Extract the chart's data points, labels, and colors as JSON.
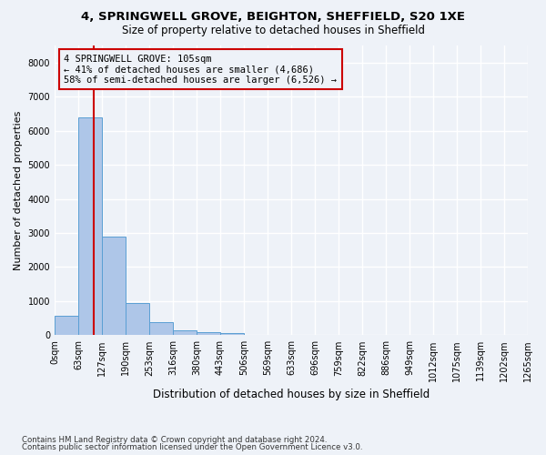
{
  "title1": "4, SPRINGWELL GROVE, BEIGHTON, SHEFFIELD, S20 1XE",
  "title2": "Size of property relative to detached houses in Sheffield",
  "xlabel": "Distribution of detached houses by size in Sheffield",
  "ylabel": "Number of detached properties",
  "bin_labels": [
    "0sqm",
    "63sqm",
    "127sqm",
    "190sqm",
    "253sqm",
    "316sqm",
    "380sqm",
    "443sqm",
    "506sqm",
    "569sqm",
    "633sqm",
    "696sqm",
    "759sqm",
    "822sqm",
    "886sqm",
    "949sqm",
    "1012sqm",
    "1075sqm",
    "1139sqm",
    "1202sqm",
    "1265sqm"
  ],
  "bar_values": [
    580,
    6400,
    2900,
    950,
    370,
    155,
    90,
    55,
    10,
    5,
    3,
    2,
    1,
    1,
    0,
    0,
    0,
    0,
    0,
    0
  ],
  "bar_color": "#aec6e8",
  "bar_edgecolor": "#5a9fd4",
  "annotation_title": "4 SPRINGWELL GROVE: 105sqm",
  "annotation_line2": "← 41% of detached houses are smaller (4,686)",
  "annotation_line3": "58% of semi-detached houses are larger (6,526) →",
  "annotation_box_color": "#cc0000",
  "footer1": "Contains HM Land Registry data © Crown copyright and database right 2024.",
  "footer2": "Contains public sector information licensed under the Open Government Licence v3.0.",
  "background_color": "#eef2f8",
  "grid_color": "#ffffff",
  "ylim": [
    0,
    8500
  ],
  "yticks": [
    0,
    1000,
    2000,
    3000,
    4000,
    5000,
    6000,
    7000,
    8000
  ]
}
